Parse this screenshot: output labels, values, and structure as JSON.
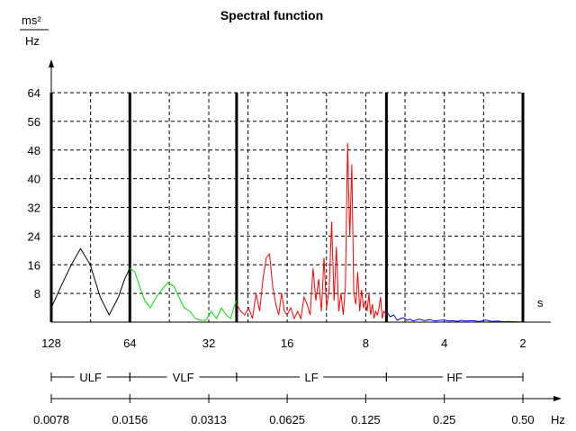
{
  "chart_data": {
    "type": "line",
    "title": "Spectral function",
    "y_unit_numerator": "ms²",
    "y_unit_denominator": "Hz",
    "period_axis_unit": "s",
    "freq_axis_unit": "Hz",
    "ylim": [
      0,
      64
    ],
    "y_ticks": [
      8,
      16,
      24,
      32,
      40,
      48,
      56,
      64
    ],
    "grid": true,
    "period_ticks": [
      {
        "label": "128",
        "freq": 0.0078
      },
      {
        "label": "64",
        "freq": 0.0156
      },
      {
        "label": "32",
        "freq": 0.0313
      },
      {
        "label": "16",
        "freq": 0.0625
      },
      {
        "label": "8",
        "freq": 0.125
      },
      {
        "label": "4",
        "freq": 0.25
      },
      {
        "label": "2",
        "freq": 0.5
      }
    ],
    "freq_ticks": [
      {
        "label": "0.0078",
        "freq": 0.0078
      },
      {
        "label": "0.0156",
        "freq": 0.0156
      },
      {
        "label": "0.0313",
        "freq": 0.0313
      },
      {
        "label": "0.0625",
        "freq": 0.0625
      },
      {
        "label": "0.125",
        "freq": 0.125
      },
      {
        "label": "0.25",
        "freq": 0.25
      },
      {
        "label": "0.50",
        "freq": 0.5
      }
    ],
    "band_boundaries": [
      0.0078,
      0.0156,
      0.04,
      0.15,
      0.5
    ],
    "bands": [
      {
        "label": "ULF",
        "from": 0.0078,
        "to": 0.0156
      },
      {
        "label": "VLF",
        "from": 0.0156,
        "to": 0.04
      },
      {
        "label": "LF",
        "from": 0.04,
        "to": 0.15
      },
      {
        "label": "HF",
        "from": 0.15,
        "to": 0.5
      }
    ],
    "series": [
      {
        "color": "#000000",
        "x": [
          0.0078,
          0.0085,
          0.0093,
          0.0101,
          0.011,
          0.012,
          0.013,
          0.0141,
          0.0149,
          0.0156
        ],
        "y": [
          4,
          10,
          16,
          20.5,
          16,
          7,
          2,
          7,
          12,
          15
        ]
      },
      {
        "color": "#00dd00",
        "x": [
          0.0156,
          0.0163,
          0.017,
          0.0178,
          0.0187,
          0.0197,
          0.0207,
          0.0218,
          0.023,
          0.024,
          0.0252,
          0.0265,
          0.0278,
          0.0292,
          0.0305,
          0.032,
          0.0335,
          0.035,
          0.0365,
          0.038,
          0.039,
          0.04
        ],
        "y": [
          15,
          14,
          10,
          6,
          4,
          7,
          9,
          11,
          10,
          7,
          4,
          3,
          1,
          0.5,
          0.5,
          3,
          1,
          4,
          2,
          1,
          4,
          6
        ]
      },
      {
        "color": "#ff0000",
        "x": [
          0.04,
          0.0415,
          0.043,
          0.0445,
          0.046,
          0.0475,
          0.049,
          0.0505,
          0.052,
          0.0535,
          0.055,
          0.0565,
          0.058,
          0.0595,
          0.061,
          0.0625,
          0.0645,
          0.0665,
          0.0685,
          0.0705,
          0.0725,
          0.0745,
          0.0765,
          0.0785,
          0.0805,
          0.0825,
          0.0845,
          0.0865,
          0.0885,
          0.0905,
          0.0925,
          0.0945,
          0.0965,
          0.0985,
          0.1005,
          0.1025,
          0.1045,
          0.1065,
          0.1085,
          0.1105,
          0.1125,
          0.1145,
          0.1165,
          0.1185,
          0.1205,
          0.1225,
          0.1245,
          0.1265,
          0.1285,
          0.1305,
          0.1325,
          0.1345,
          0.1365,
          0.1385,
          0.1405,
          0.1425,
          0.1445,
          0.1465,
          0.15
        ],
        "y": [
          5,
          3,
          2,
          4,
          1,
          8,
          3,
          12,
          18,
          19,
          10,
          5,
          2,
          8,
          3,
          2,
          4,
          1,
          3,
          1,
          7,
          5,
          2,
          15,
          6,
          12,
          3,
          18,
          4,
          9,
          28,
          6,
          21,
          3,
          8,
          2,
          10,
          50,
          24,
          44,
          8,
          5,
          14,
          3,
          9,
          4,
          6,
          3,
          8,
          2,
          5,
          1,
          3,
          2,
          4,
          7,
          1,
          3,
          2
        ]
      },
      {
        "color": "#0000ff",
        "x": [
          0.15,
          0.155,
          0.16,
          0.165,
          0.17,
          0.175,
          0.18,
          0.185,
          0.19,
          0.195,
          0.2,
          0.21,
          0.22,
          0.23,
          0.24,
          0.25,
          0.26,
          0.27,
          0.28,
          0.29,
          0.3,
          0.32,
          0.34,
          0.36,
          0.38,
          0.4,
          0.42,
          0.44,
          0.46,
          0.48,
          0.5
        ],
        "y": [
          3,
          1.5,
          2,
          0.5,
          1,
          1.2,
          0.5,
          0.8,
          0.3,
          0.6,
          0.8,
          0.4,
          0.7,
          0.3,
          0.5,
          0.6,
          0.3,
          0.4,
          0.2,
          0.5,
          0.3,
          0.4,
          0.2,
          0.6,
          0.2,
          0.3,
          0.1,
          0.2,
          0.1,
          0.1,
          0
        ]
      }
    ]
  }
}
